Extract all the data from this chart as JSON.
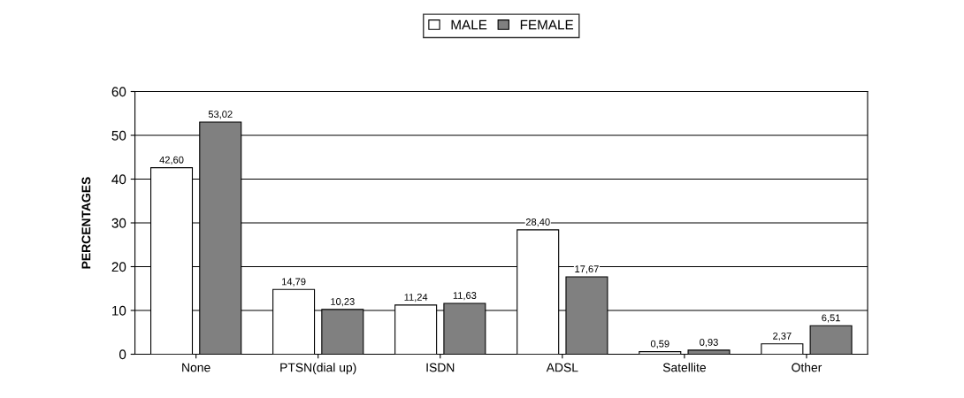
{
  "chart_data": {
    "type": "bar",
    "ylabel": "PERCENTAGES",
    "categories": [
      "None",
      "PTSN(dial up)",
      "ISDN",
      "ADSL",
      "Satellite",
      "Other"
    ],
    "series": [
      {
        "name": "MALE",
        "color": "#ffffff",
        "values": [
          42.6,
          14.79,
          11.24,
          28.4,
          0.59,
          2.37
        ],
        "value_labels": [
          "42,60",
          "14,79",
          "11,24",
          "28,40",
          "0,59",
          "2,37"
        ]
      },
      {
        "name": "FEMALE",
        "color": "#808080",
        "values": [
          53.02,
          10.23,
          11.63,
          17.67,
          0.93,
          6.51
        ],
        "value_labels": [
          "53,02",
          "10,23",
          "11,63",
          "17,67",
          "0,93",
          "6,51"
        ]
      }
    ],
    "ylim": [
      0,
      60
    ],
    "yticks": [
      0,
      10,
      20,
      30,
      40,
      50,
      60
    ],
    "grid": "y",
    "legend": "top"
  }
}
